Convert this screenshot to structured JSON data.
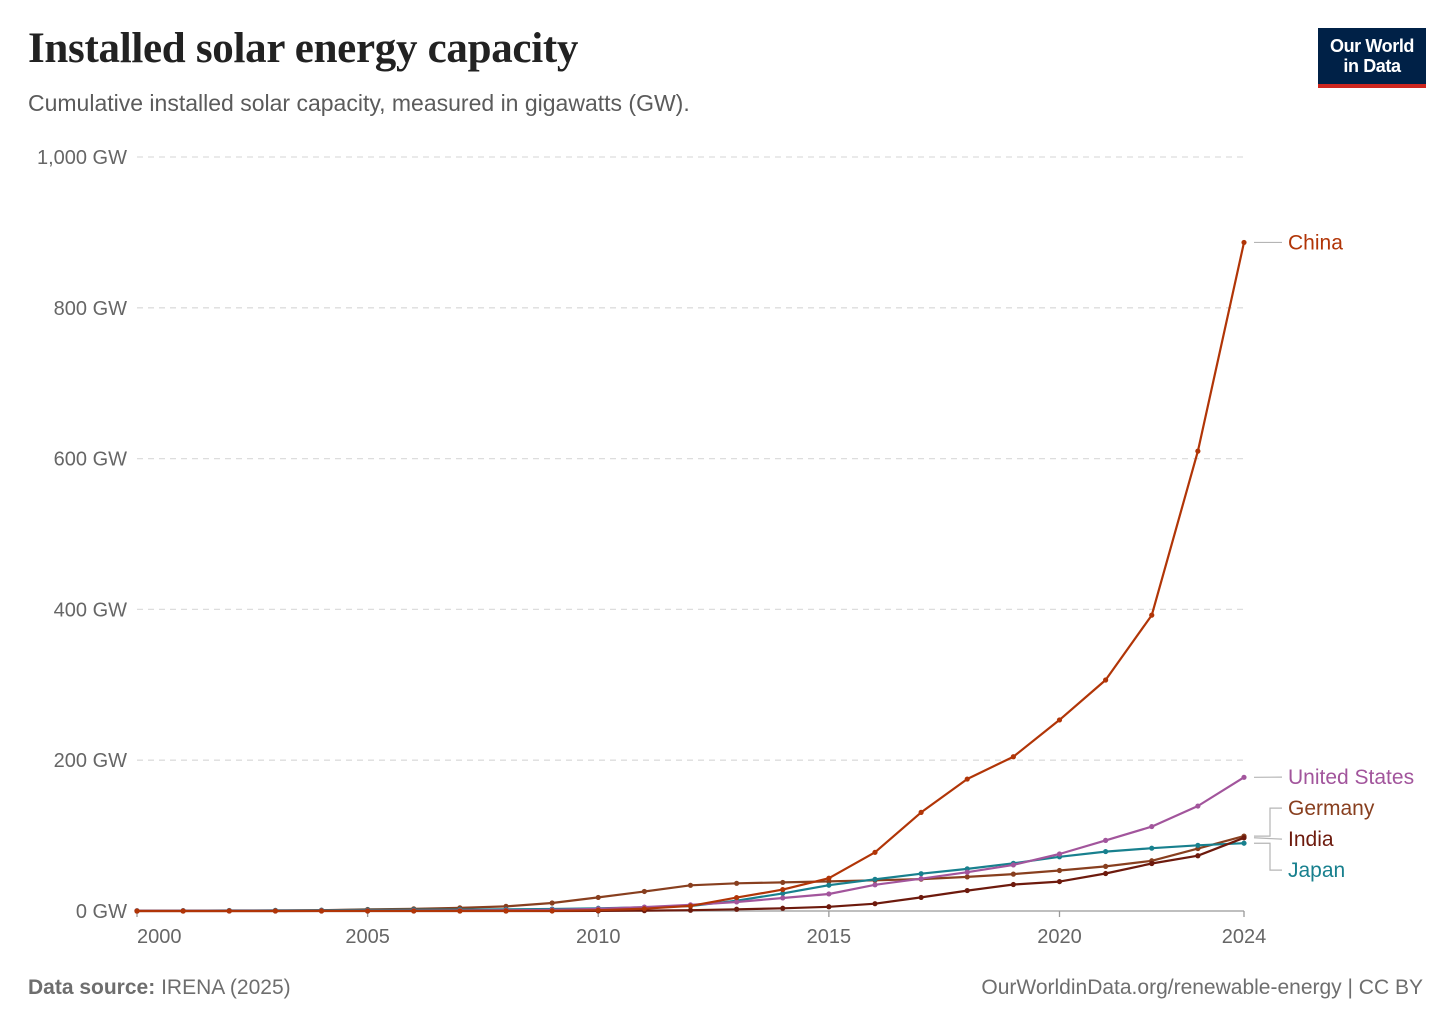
{
  "title": "Installed solar energy capacity",
  "subtitle": "Cumulative installed solar capacity, measured in gigawatts (GW).",
  "logo": {
    "line1": "Our World",
    "line2": "in Data",
    "bg": "#002147",
    "accent": "#ce261e"
  },
  "footer": {
    "source_label": "Data source:",
    "source_value": "IRENA (2025)",
    "right": "OurWorldinData.org/renewable-energy | CC BY"
  },
  "chart_data": {
    "type": "line",
    "title": "Installed solar energy capacity",
    "subtitle": "Cumulative installed solar capacity, measured in gigawatts (GW).",
    "xlabel": "",
    "ylabel": "",
    "xlim": [
      2000,
      2024
    ],
    "ylim": [
      0,
      1000
    ],
    "y_ticks": [
      0,
      200,
      400,
      600,
      800,
      1000
    ],
    "y_tick_labels": [
      "0 GW",
      "200 GW",
      "400 GW",
      "600 GW",
      "800 GW",
      "1,000 GW"
    ],
    "x_ticks": [
      2000,
      2005,
      2010,
      2015,
      2020,
      2024
    ],
    "x_tick_labels": [
      "2000",
      "2005",
      "2010",
      "2015",
      "2020",
      "2024"
    ],
    "grid": "horizontal dashed",
    "legend": "line labels at right end",
    "x": [
      2000,
      2001,
      2002,
      2003,
      2004,
      2005,
      2006,
      2007,
      2008,
      2009,
      2010,
      2011,
      2012,
      2013,
      2014,
      2015,
      2016,
      2017,
      2018,
      2019,
      2020,
      2021,
      2022,
      2023,
      2024
    ],
    "series": [
      {
        "name": "China",
        "color": "#b13507",
        "values": [
          0.02,
          0.03,
          0.05,
          0.06,
          0.07,
          0.07,
          0.08,
          0.1,
          0.14,
          0.3,
          1.0,
          3.1,
          6.7,
          17.8,
          28.4,
          43.5,
          77.8,
          130.8,
          175.0,
          204.6,
          253.4,
          306.4,
          392.4,
          609.9,
          886.7
        ]
      },
      {
        "name": "United States",
        "color": "#a2559c",
        "values": [
          0.15,
          0.17,
          0.2,
          0.25,
          0.3,
          0.4,
          0.5,
          0.7,
          1.1,
          1.6,
          2.9,
          5.2,
          8.1,
          12.0,
          17.3,
          22.6,
          34.7,
          42.9,
          51.4,
          61.1,
          75.6,
          93.7,
          112.0,
          139.2,
          177.3
        ]
      },
      {
        "name": "India",
        "color": "#6d1a0d",
        "values": [
          0.01,
          0.01,
          0.01,
          0.01,
          0.01,
          0.01,
          0.01,
          0.02,
          0.03,
          0.04,
          0.07,
          0.5,
          1.0,
          2.3,
          3.6,
          5.6,
          9.7,
          18.0,
          27.1,
          35.1,
          39.0,
          49.7,
          63.0,
          73.3,
          97.1
        ]
      },
      {
        "name": "Japan",
        "color": "#18808e",
        "values": [
          0.33,
          0.45,
          0.64,
          0.86,
          1.1,
          1.4,
          1.7,
          1.9,
          2.1,
          2.6,
          3.6,
          4.9,
          6.6,
          13.6,
          23.3,
          34.2,
          42.0,
          49.5,
          55.9,
          63.2,
          71.9,
          78.8,
          83.3,
          87.1,
          89.9
        ]
      },
      {
        "name": "Germany",
        "color": "#883f1f",
        "values": [
          0.1,
          0.2,
          0.3,
          0.4,
          1.1,
          2.1,
          2.9,
          4.2,
          6.1,
          10.6,
          18.0,
          25.9,
          34.1,
          36.7,
          37.9,
          39.2,
          40.7,
          42.3,
          45.2,
          48.9,
          53.7,
          59.2,
          66.6,
          82.8,
          99.3
        ]
      }
    ]
  }
}
